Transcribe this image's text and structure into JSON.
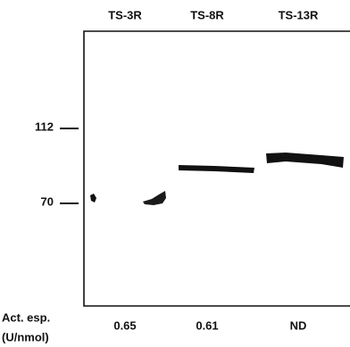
{
  "lanes": [
    "TS-3R",
    "TS-8R",
    "TS-13R"
  ],
  "markers": [
    "112",
    "70"
  ],
  "activity": {
    "label": "Act. esp.",
    "unit": "(U/nmol)",
    "values": [
      "0.65",
      "0.61",
      "ND"
    ]
  }
}
